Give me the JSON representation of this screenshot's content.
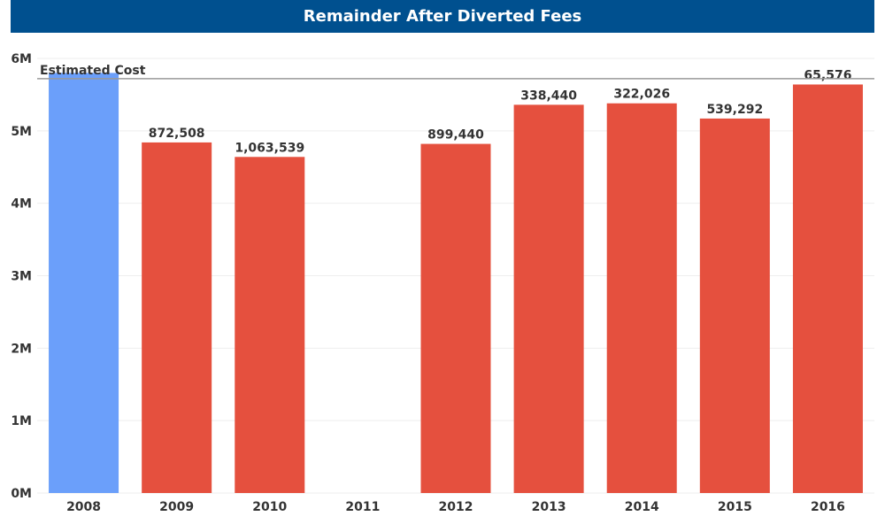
{
  "chart_data": {
    "type": "bar",
    "title": "Remainder After Diverted Fees",
    "categories": [
      "2008",
      "2009",
      "2010",
      "2011",
      "2012",
      "2013",
      "2014",
      "2015",
      "2016"
    ],
    "values": [
      5800000,
      4840000,
      4640000,
      null,
      4820000,
      5360000,
      5380000,
      5170000,
      5640000
    ],
    "data_labels": [
      "",
      "872,508",
      "1,063,539",
      "",
      "899,440",
      "338,440",
      "322,026",
      "539,292",
      "65,576"
    ],
    "bar_colors": [
      "#6b9ffa",
      "#e5503e",
      "#e5503e",
      "#e5503e",
      "#e5503e",
      "#e5503e",
      "#e5503e",
      "#e5503e",
      "#e5503e"
    ],
    "ylim": [
      0,
      6000000
    ],
    "yticks": [
      {
        "value": 0,
        "label": "0M"
      },
      {
        "value": 1000000,
        "label": "1M"
      },
      {
        "value": 2000000,
        "label": "2M"
      },
      {
        "value": 3000000,
        "label": "3M"
      },
      {
        "value": 4000000,
        "label": "4M"
      },
      {
        "value": 5000000,
        "label": "5M"
      },
      {
        "value": 6000000,
        "label": "6M"
      }
    ],
    "reference_line": {
      "label": "Estimated Cost",
      "value": 5720000,
      "color": "#999999"
    },
    "grid": true,
    "title_bar_color": "#00508f"
  }
}
